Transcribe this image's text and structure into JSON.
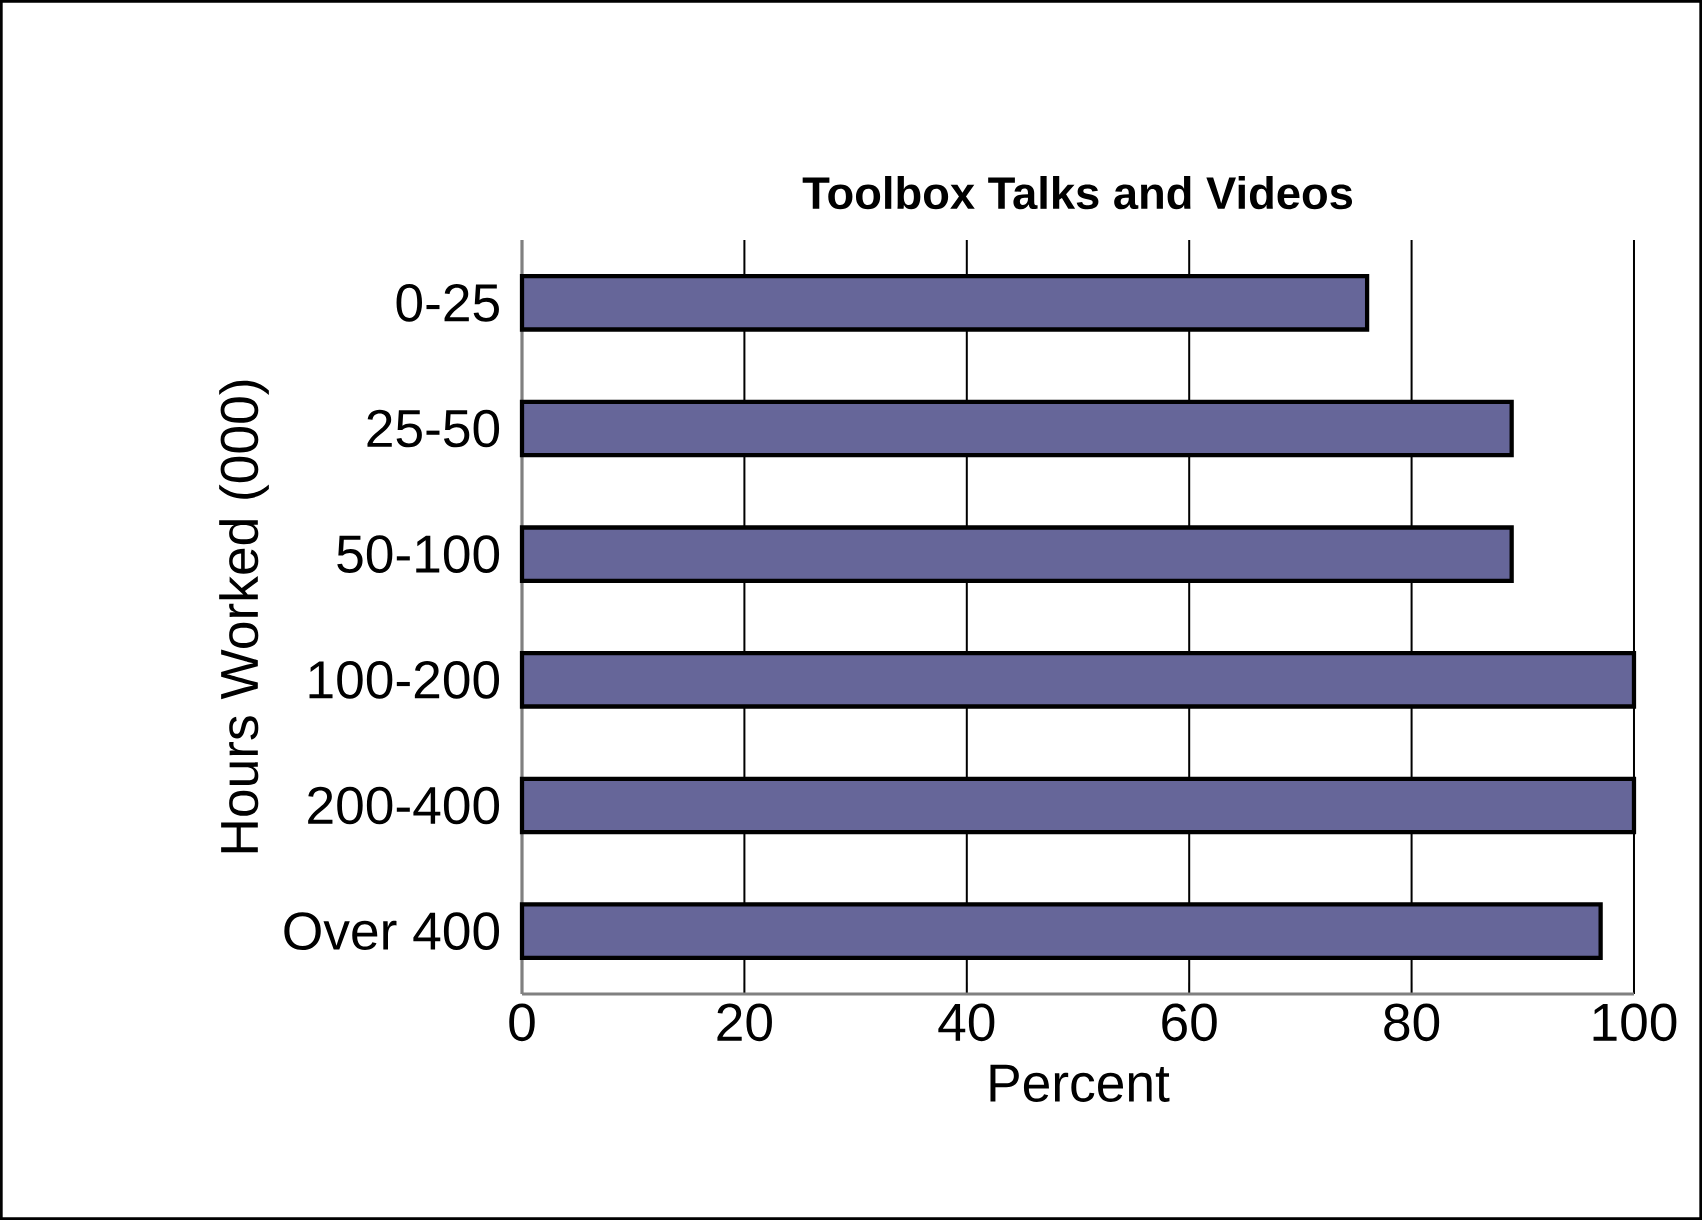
{
  "chart_data": {
    "type": "bar",
    "orientation": "horizontal",
    "title": "Toolbox Talks and Videos",
    "xlabel": "Percent",
    "ylabel": "Hours Worked (000)",
    "categories": [
      "0-25",
      "25-50",
      "50-100",
      "100-200",
      "200-400",
      "Over 400"
    ],
    "values": [
      76,
      89,
      89,
      100,
      100,
      97
    ],
    "color": "#666699",
    "xlim": [
      0,
      100
    ],
    "xticks": [
      0,
      20,
      40,
      60,
      80,
      100
    ],
    "grid": "x"
  }
}
